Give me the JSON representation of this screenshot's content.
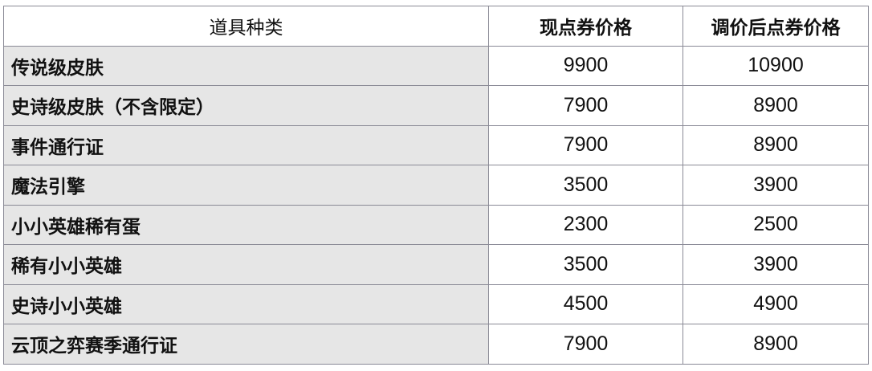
{
  "table": {
    "headers": [
      "道具种类",
      "现点券价格",
      "调价后点券价格"
    ],
    "rows": [
      {
        "item": "传说级皮肤",
        "current": "9900",
        "adjusted": "10900"
      },
      {
        "item": "史诗级皮肤（不含限定）",
        "current": "7900",
        "adjusted": "8900"
      },
      {
        "item": "事件通行证",
        "current": "7900",
        "adjusted": "8900"
      },
      {
        "item": "魔法引擎",
        "current": "3500",
        "adjusted": "3900"
      },
      {
        "item": "小小英雄稀有蛋",
        "current": "2300",
        "adjusted": "2500"
      },
      {
        "item": "稀有小小英雄",
        "current": "3500",
        "adjusted": "3900"
      },
      {
        "item": "史诗小小英雄",
        "current": "4500",
        "adjusted": "4900"
      },
      {
        "item": "云顶之弈赛季通行证",
        "current": "7900",
        "adjusted": "8900"
      }
    ]
  }
}
